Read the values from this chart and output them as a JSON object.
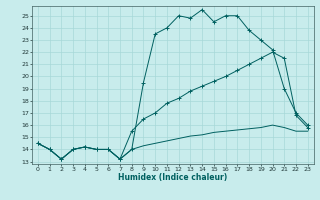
{
  "xlabel": "Humidex (Indice chaleur)",
  "background_color": "#c8ecec",
  "grid_color": "#a8d8d8",
  "line_color": "#006060",
  "xlim": [
    -0.5,
    23.5
  ],
  "ylim": [
    12.8,
    25.8
  ],
  "xticks": [
    0,
    1,
    2,
    3,
    4,
    5,
    6,
    7,
    8,
    9,
    10,
    11,
    12,
    13,
    14,
    15,
    16,
    17,
    18,
    19,
    20,
    21,
    22,
    23
  ],
  "yticks": [
    13,
    14,
    15,
    16,
    17,
    18,
    19,
    20,
    21,
    22,
    23,
    24,
    25
  ],
  "s1_x": [
    0,
    1,
    2,
    3,
    4,
    5,
    6,
    7,
    8,
    9,
    10,
    11,
    12,
    13,
    14,
    15,
    16,
    17,
    18,
    19,
    20,
    21,
    22,
    23
  ],
  "s1_y": [
    14.5,
    14.0,
    13.2,
    14.0,
    14.2,
    14.0,
    14.0,
    13.2,
    14.0,
    19.5,
    23.5,
    24.0,
    25.0,
    24.8,
    25.5,
    24.5,
    25.0,
    25.0,
    23.8,
    23.0,
    22.2,
    19.0,
    17.0,
    16.0
  ],
  "s2_x": [
    0,
    1,
    2,
    3,
    4,
    5,
    6,
    7,
    8,
    9,
    10,
    11,
    12,
    13,
    14,
    15,
    16,
    17,
    18,
    19,
    20,
    21,
    22,
    23
  ],
  "s2_y": [
    14.5,
    14.0,
    13.2,
    14.0,
    14.2,
    14.0,
    14.0,
    13.2,
    15.5,
    16.5,
    17.0,
    17.8,
    18.2,
    18.8,
    19.2,
    19.6,
    20.0,
    20.5,
    21.0,
    21.5,
    22.0,
    21.5,
    16.8,
    15.8
  ],
  "s3_x": [
    0,
    1,
    2,
    3,
    4,
    5,
    6,
    7,
    8,
    9,
    10,
    11,
    12,
    13,
    14,
    15,
    16,
    17,
    18,
    19,
    20,
    21,
    22,
    23
  ],
  "s3_y": [
    14.5,
    14.0,
    13.2,
    14.0,
    14.2,
    14.0,
    14.0,
    13.2,
    14.0,
    14.3,
    14.5,
    14.7,
    14.9,
    15.1,
    15.2,
    15.4,
    15.5,
    15.6,
    15.7,
    15.8,
    16.0,
    15.8,
    15.5,
    15.5
  ]
}
